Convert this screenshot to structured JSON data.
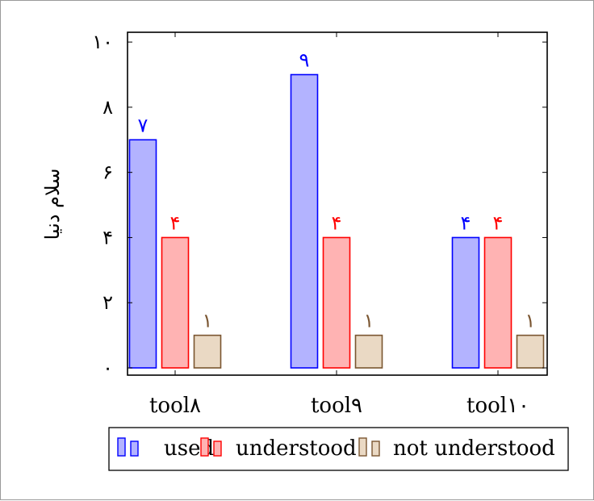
{
  "chart_data": {
    "type": "bar",
    "categories": [
      "tool۸",
      "tool۹",
      "tool۱۰"
    ],
    "series": [
      {
        "name": "used",
        "values": [
          7,
          9,
          4
        ],
        "labels": [
          "۷",
          "۹",
          "۴"
        ],
        "stroke": "#0000ff",
        "fill": "#b3b3ff"
      },
      {
        "name": "understood",
        "values": [
          4,
          4,
          4
        ],
        "labels": [
          "۴",
          "۴",
          "۴"
        ],
        "stroke": "#ff0000",
        "fill": "#ffb3b3"
      },
      {
        "name": "not understood",
        "values": [
          1,
          1,
          1
        ],
        "labels": [
          "۱",
          "۱",
          "۱"
        ],
        "stroke": "#7a5530",
        "fill": "#ead9c4"
      }
    ],
    "yticks": [
      0,
      2,
      4,
      6,
      8,
      10
    ],
    "ytick_labels": [
      "۰",
      "۲",
      "۴",
      "۶",
      "۸",
      "۱۰"
    ],
    "ylim": [
      0,
      10.3
    ],
    "ylabel": "سلام دنیا",
    "xlabel": "",
    "title": "",
    "legend_position": "bottom"
  }
}
